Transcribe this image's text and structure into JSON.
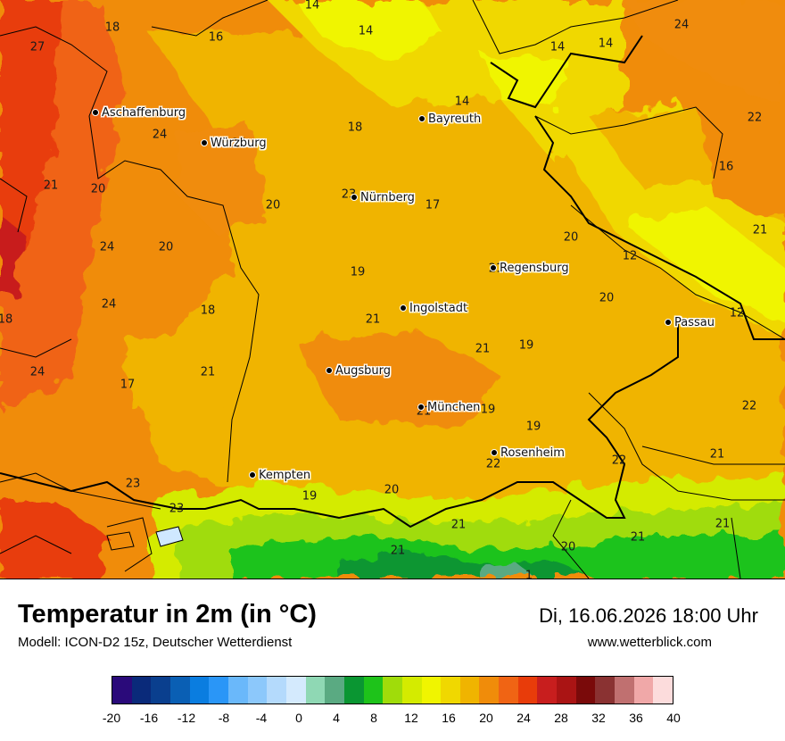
{
  "header": {
    "title": "Temperatur in 2m (in °C)",
    "model": "Modell: ICON-D2 15z, Deutscher Wetterdienst",
    "datetime": "Di, 16.06.2026 18:00 Uhr",
    "website": "www.wetterblick.com"
  },
  "cities": [
    {
      "name": "Aschaffenburg"
    },
    {
      "name": "Würzburg"
    },
    {
      "name": "Bayreuth"
    },
    {
      "name": "Nürnberg"
    },
    {
      "name": "Regensburg"
    },
    {
      "name": "Ingolstadt"
    },
    {
      "name": "Passau"
    },
    {
      "name": "Augsburg"
    },
    {
      "name": "München"
    },
    {
      "name": "Rosenheim"
    },
    {
      "name": "Kempten"
    }
  ],
  "temperature_labels": [
    "14",
    "18",
    "16",
    "14",
    "27",
    "14",
    "14",
    "24",
    "14",
    "24",
    "18",
    "24",
    "21",
    "20",
    "22",
    "16",
    "23",
    "20",
    "17",
    "24",
    "20",
    "20",
    "21",
    "12",
    "18",
    "24",
    "19",
    "21",
    "20",
    "18",
    "21",
    "12",
    "21",
    "21",
    "19",
    "24",
    "21",
    "17",
    "22",
    "19",
    "21",
    "19",
    "21",
    "22",
    "23",
    "22",
    "21",
    "19",
    "20",
    "23",
    "21",
    "21",
    "21",
    "20",
    "1"
  ],
  "legend": {
    "colors": [
      "#2a0a7a",
      "#0a2a7a",
      "#0a3f8e",
      "#0a5fb4",
      "#0a7de0",
      "#2a96f7",
      "#6ab8fa",
      "#8cc8fb",
      "#b4dafc",
      "#d4eafd",
      "#8fd8b4",
      "#5aaa82",
      "#0a9632",
      "#1ec31a",
      "#a0dc0a",
      "#d4eb00",
      "#f0f500",
      "#f0d800",
      "#f0b400",
      "#f08c0a",
      "#f06414",
      "#e83c0a",
      "#c81e1e",
      "#aa1414",
      "#7a0a0a",
      "#8a3232",
      "#c07070",
      "#f0a8a8",
      "#fcdcdc"
    ],
    "ticks": [
      "-20",
      "-16",
      "-12",
      "-8",
      "-4",
      "0",
      "4",
      "8",
      "12",
      "16",
      "20",
      "24",
      "28",
      "32",
      "36",
      "40"
    ]
  }
}
